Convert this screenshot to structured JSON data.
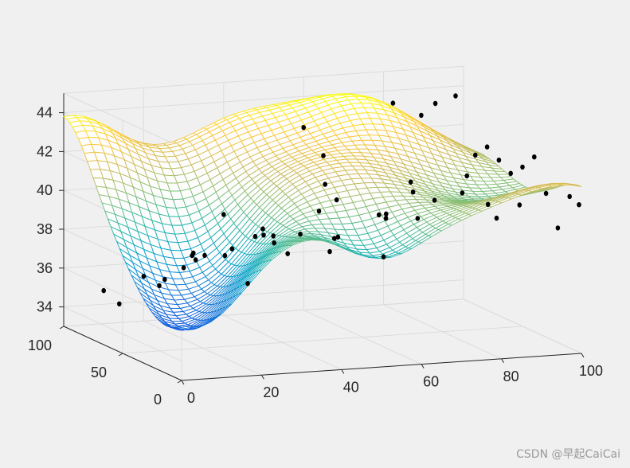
{
  "figure": {
    "background": "#f0f0f0",
    "axes_color": "#262626",
    "grid_color": "#dcdcdc"
  },
  "chart_data": {
    "type": "surface",
    "title": "",
    "xlabel": "",
    "ylabel": "",
    "zlabel": "",
    "x_range": [
      0,
      100
    ],
    "y_range": [
      0,
      100
    ],
    "z_range": [
      33,
      45
    ],
    "x_ticks": [
      "0",
      "20",
      "40",
      "60",
      "80",
      "100"
    ],
    "y_ticks": [
      "0",
      "50",
      "100"
    ],
    "z_ticks": [
      "34",
      "36",
      "38",
      "40",
      "42",
      "44"
    ],
    "grid": true,
    "colormap": "parula",
    "colormap_stops": [
      "#352a87",
      "#0f5cdd",
      "#1481d6",
      "#06a4ca",
      "#2eb7a4",
      "#87bf77",
      "#d1bb59",
      "#fec832",
      "#f9fb0e"
    ],
    "mesh_resolution": 40,
    "scatter": {
      "color": "#000000",
      "points": [
        [
          98,
          100,
          43.5
        ],
        [
          100,
          90,
          40.7
        ],
        [
          100,
          80,
          41.4
        ],
        [
          100,
          70,
          41.0
        ],
        [
          100,
          60,
          40.6
        ],
        [
          100,
          50,
          41.2
        ],
        [
          100,
          40,
          42.0
        ],
        [
          100,
          30,
          40.4
        ],
        [
          100,
          20,
          38.9
        ],
        [
          100,
          10,
          40.8
        ],
        [
          100,
          2,
          40.6
        ],
        [
          90,
          90,
          43.5
        ],
        [
          85,
          85,
          43.1
        ],
        [
          80,
          92,
          43.6
        ],
        [
          92,
          70,
          40.3
        ],
        [
          75,
          60,
          40.5
        ],
        [
          82,
          40,
          40.4
        ],
        [
          84,
          25,
          40.2
        ],
        [
          86,
          5,
          40.7
        ],
        [
          80,
          98,
          37.5
        ],
        [
          95,
          55,
          38.5
        ],
        [
          80,
          75,
          39.5
        ],
        [
          70,
          70,
          38.6
        ],
        [
          78,
          50,
          39.8
        ],
        [
          60,
          100,
          42.4
        ],
        [
          62,
          90,
          41.2
        ],
        [
          58,
          75,
          40.2
        ],
        [
          55,
          55,
          40.0
        ],
        [
          60,
          30,
          39.9
        ],
        [
          62,
          10,
          40.2
        ],
        [
          50,
          100,
          37.0
        ],
        [
          48,
          85,
          37.4
        ],
        [
          55,
          70,
          39.0
        ],
        [
          50,
          40,
          38.5
        ],
        [
          45,
          20,
          39.2
        ],
        [
          52,
          5,
          38.5
        ],
        [
          40,
          100,
          38.2
        ],
        [
          42,
          80,
          37.6
        ],
        [
          38,
          60,
          38.6
        ],
        [
          40,
          35,
          39.0
        ],
        [
          40,
          10,
          38.8
        ],
        [
          30,
          100,
          35.6
        ],
        [
          28,
          85,
          36.8
        ],
        [
          30,
          65,
          37.2
        ],
        [
          32,
          30,
          38.8
        ],
        [
          28,
          5,
          39.0
        ],
        [
          20,
          100,
          35.3
        ],
        [
          18,
          80,
          35.4
        ],
        [
          22,
          55,
          37.6
        ],
        [
          20,
          25,
          38.8
        ],
        [
          18,
          5,
          37.6
        ],
        [
          10,
          100,
          34.7
        ],
        [
          8,
          80,
          34.6
        ],
        [
          12,
          55,
          36.5
        ],
        [
          10,
          25,
          38.6
        ],
        [
          5,
          5,
          39.0
        ]
      ]
    }
  },
  "watermark": "CSDN @早起CaiCai"
}
